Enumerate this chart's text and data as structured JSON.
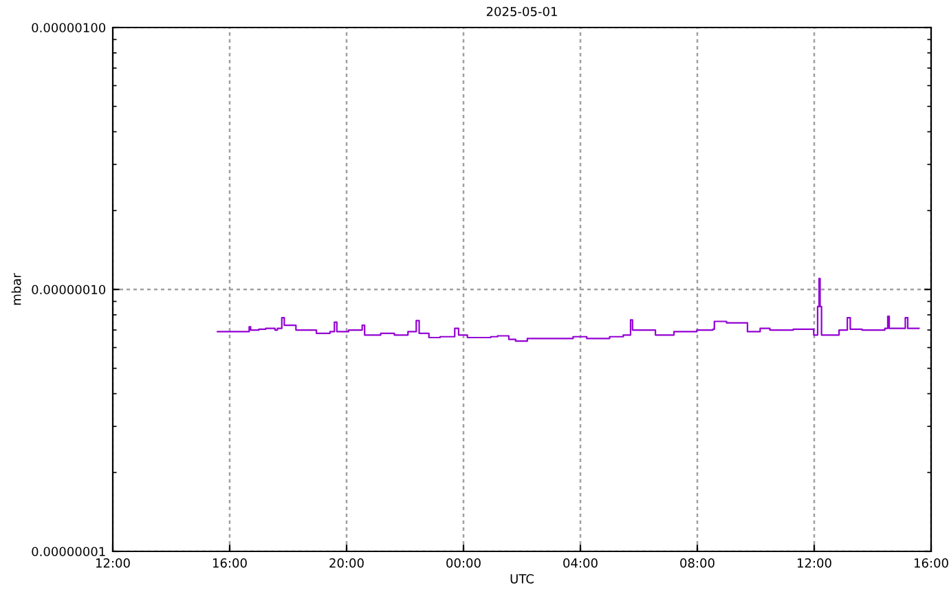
{
  "chart_data": {
    "type": "step",
    "title": "2025-05-01",
    "xlabel": "UTC",
    "ylabel": "mbar",
    "log": "y",
    "grid": true,
    "marker": "none",
    "line_style": "solid",
    "xlim": [
      "2025-05-01T12:00",
      "2025-05-02T16:00"
    ],
    "xticks": [
      {
        "value": "2025-05-01T12:00",
        "label": "12:00"
      },
      {
        "value": "2025-05-01T16:00",
        "label": "16:00"
      },
      {
        "value": "2025-05-01T20:00",
        "label": "20:00"
      },
      {
        "value": "2025-05-02T00:00",
        "label": "00:00"
      },
      {
        "value": "2025-05-02T04:00",
        "label": "04:00"
      },
      {
        "value": "2025-05-02T08:00",
        "label": "08:00"
      },
      {
        "value": "2025-05-02T12:00",
        "label": "12:00"
      },
      {
        "value": "2025-05-02T16:00",
        "label": "16:00"
      }
    ],
    "ylim": [
      1e-08,
      1e-06
    ],
    "yticks": [
      {
        "value": 1e-08,
        "label": "0.00000001"
      },
      {
        "value": 1e-07,
        "label": "0.00000010"
      },
      {
        "value": 1e-06,
        "label": "0.00000100"
      }
    ],
    "series": [
      {
        "color": "#9400d3",
        "x": [
          "2025-05-01T15:35",
          "2025-05-01T15:59",
          "2025-05-01T16:38",
          "2025-05-01T16:40",
          "2025-05-01T16:43",
          "2025-05-01T17:00",
          "2025-05-01T17:14",
          "2025-05-01T17:33",
          "2025-05-01T17:38",
          "2025-05-01T17:47",
          "2025-05-01T17:52",
          "2025-05-01T18:01",
          "2025-05-01T18:16",
          "2025-05-01T18:49",
          "2025-05-01T18:58",
          "2025-05-01T19:26",
          "2025-05-01T19:35",
          "2025-05-01T19:40",
          "2025-05-01T20:04",
          "2025-05-01T20:32",
          "2025-05-01T20:37",
          "2025-05-01T21:10",
          "2025-05-01T21:38",
          "2025-05-01T22:06",
          "2025-05-01T22:23",
          "2025-05-01T22:29",
          "2025-05-01T22:49",
          "2025-05-01T23:12",
          "2025-05-01T23:42",
          "2025-05-01T23:50",
          "2025-05-02T00:08",
          "2025-05-02T00:56",
          "2025-05-02T01:10",
          "2025-05-02T01:33",
          "2025-05-02T01:47",
          "2025-05-02T02:11",
          "2025-05-02T02:58",
          "2025-05-02T03:45",
          "2025-05-02T04:13",
          "2025-05-02T05:00",
          "2025-05-02T05:28",
          "2025-05-02T05:43",
          "2025-05-02T05:47",
          "2025-05-02T06:34",
          "2025-05-02T07:12",
          "2025-05-02T07:59",
          "2025-05-02T08:32",
          "2025-05-02T08:35",
          "2025-05-02T09:00",
          "2025-05-02T09:43",
          "2025-05-02T10:09",
          "2025-05-02T10:29",
          "2025-05-02T11:17",
          "2025-05-02T11:59",
          "2025-05-02T12:07",
          "2025-05-02T12:10",
          "2025-05-02T12:12",
          "2025-05-02T12:15",
          "2025-05-02T12:51",
          "2025-05-02T13:08",
          "2025-05-02T13:14",
          "2025-05-02T13:38",
          "2025-05-02T14:25",
          "2025-05-02T14:31",
          "2025-05-02T14:34",
          "2025-05-02T15:07",
          "2025-05-02T15:12",
          "2025-05-02T15:35"
        ],
        "values": [
          6.9e-08,
          6.9e-08,
          6.9e-08,
          7.2e-08,
          7e-08,
          7.05e-08,
          7.1e-08,
          7e-08,
          7.1e-08,
          7.8e-08,
          7.3e-08,
          7.3e-08,
          7e-08,
          7e-08,
          6.8e-08,
          6.9e-08,
          7.5e-08,
          6.9e-08,
          7e-08,
          7.3e-08,
          6.7e-08,
          6.8e-08,
          6.7e-08,
          6.9e-08,
          7.6e-08,
          6.8e-08,
          6.55e-08,
          6.6e-08,
          7.1e-08,
          6.7e-08,
          6.55e-08,
          6.6e-08,
          6.65e-08,
          6.45e-08,
          6.35e-08,
          6.5e-08,
          6.5e-08,
          6.6e-08,
          6.5e-08,
          6.6e-08,
          6.7e-08,
          7.65e-08,
          7e-08,
          6.7e-08,
          6.9e-08,
          7e-08,
          7.05e-08,
          7.55e-08,
          7.45e-08,
          6.9e-08,
          7.1e-08,
          7e-08,
          7.05e-08,
          6.7e-08,
          8.6e-08,
          1.1e-07,
          8.6e-08,
          6.7e-08,
          7e-08,
          7.8e-08,
          7.05e-08,
          7e-08,
          7.1e-08,
          7.9e-08,
          7.1e-08,
          7.8e-08,
          7.1e-08,
          7.1e-08
        ]
      }
    ]
  }
}
